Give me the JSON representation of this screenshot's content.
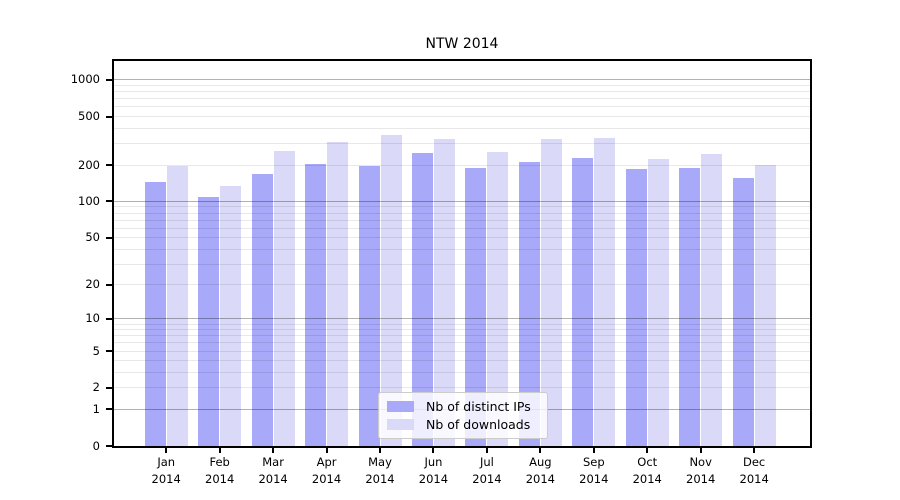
{
  "title": "NTW 2014",
  "chart_data": {
    "type": "bar",
    "title": "NTW 2014",
    "categories": [
      {
        "month": "Jan",
        "year": "2014"
      },
      {
        "month": "Feb",
        "year": "2014"
      },
      {
        "month": "Mar",
        "year": "2014"
      },
      {
        "month": "Apr",
        "year": "2014"
      },
      {
        "month": "May",
        "year": "2014"
      },
      {
        "month": "Jun",
        "year": "2014"
      },
      {
        "month": "Jul",
        "year": "2014"
      },
      {
        "month": "Aug",
        "year": "2014"
      },
      {
        "month": "Sep",
        "year": "2014"
      },
      {
        "month": "Oct",
        "year": "2014"
      },
      {
        "month": "Nov",
        "year": "2014"
      },
      {
        "month": "Dec",
        "year": "2014"
      }
    ],
    "series": [
      {
        "name": "Nb of distinct IPs",
        "color": "#a9a9fa",
        "values": [
          145,
          110,
          170,
          205,
          195,
          250,
          190,
          210,
          230,
          185,
          190,
          155
        ]
      },
      {
        "name": "Nb of downloads",
        "color": "#dadaf8",
        "values": [
          195,
          135,
          260,
          310,
          355,
          325,
          255,
          325,
          335,
          225,
          245,
          200
        ]
      }
    ],
    "yscale": "log10(value+1)",
    "ylim": [
      0,
      1300
    ],
    "yticks": [
      1000,
      500,
      200,
      100,
      50,
      20,
      10,
      5,
      2,
      1,
      0
    ],
    "grid_major_at": [
      1,
      10,
      100,
      1000
    ],
    "grid_minor_at": [
      2,
      3,
      4,
      5,
      6,
      7,
      8,
      9,
      20,
      30,
      40,
      50,
      60,
      70,
      80,
      90,
      200,
      300,
      400,
      500,
      600,
      700,
      800,
      900
    ],
    "legend_position": "inside-bottom-center",
    "grid": "on"
  }
}
